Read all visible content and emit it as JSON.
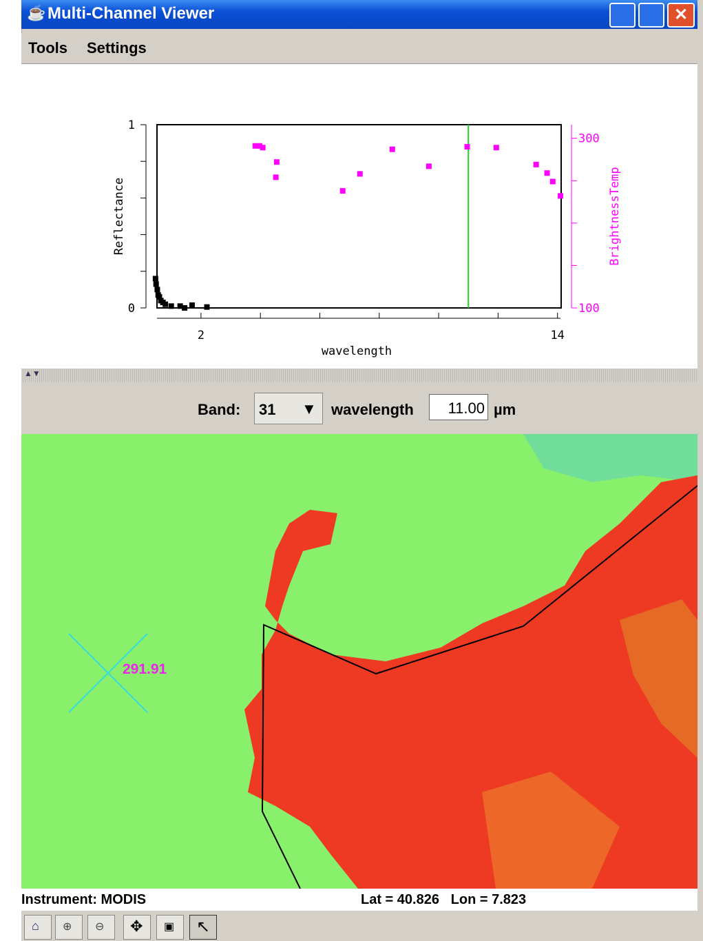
{
  "window": {
    "title": "Multi-Channel Viewer"
  },
  "menu": [
    "Tools",
    "Settings"
  ],
  "chart_data": {
    "type": "scatter",
    "x_label": "wavelength",
    "xlim": [
      0.45,
      14.1
    ],
    "xticks": [
      2,
      14
    ],
    "xminorticks": [
      4,
      6,
      8,
      10,
      12
    ],
    "ylim": [
      0,
      1
    ],
    "yticks": [
      0,
      1
    ],
    "yminorticks": [
      0.2,
      0.4,
      0.6,
      0.8
    ],
    "y2lim": [
      100,
      316
    ],
    "y2ticks": [
      100,
      300
    ],
    "y2minorticks": [
      150,
      200,
      250
    ],
    "marker_x": 11.0,
    "marker_color": "#22cc22",
    "series": [
      {
        "name": "Reflectance",
        "color": "#000000",
        "x": [
          0.47,
          0.49,
          0.53,
          0.56,
          0.6,
          0.65,
          0.72,
          0.8,
          1.0,
          1.3,
          1.45,
          1.7,
          2.2
        ],
        "values": [
          0.16,
          0.13,
          0.1,
          0.07,
          0.06,
          0.04,
          0.03,
          0.02,
          0.01,
          0.01,
          0.0,
          0.015,
          0.005
        ]
      },
      {
        "name": "BrightnessTemp",
        "color": "#ff00ff",
        "axis": "y2",
        "x": [
          3.83,
          3.97,
          4.08,
          4.55,
          4.52,
          6.77,
          7.35,
          8.44,
          9.67,
          10.96,
          11.94,
          13.28,
          13.65,
          13.84,
          14.1
        ],
        "values": [
          291,
          291,
          289,
          272,
          254,
          238,
          258,
          287,
          267,
          290,
          289,
          269,
          259,
          249,
          232
        ]
      }
    ]
  },
  "band_controls": {
    "band_label": "Band:",
    "band_value": "31",
    "wavelength_label": "wavelength",
    "wavelength_value": "11.00",
    "unit": "µm"
  },
  "map": {
    "probe_value": "291.91"
  },
  "status": {
    "instrument": "Instrument: MODIS",
    "location": "Lat = 40.826   Lon = 7.823"
  }
}
